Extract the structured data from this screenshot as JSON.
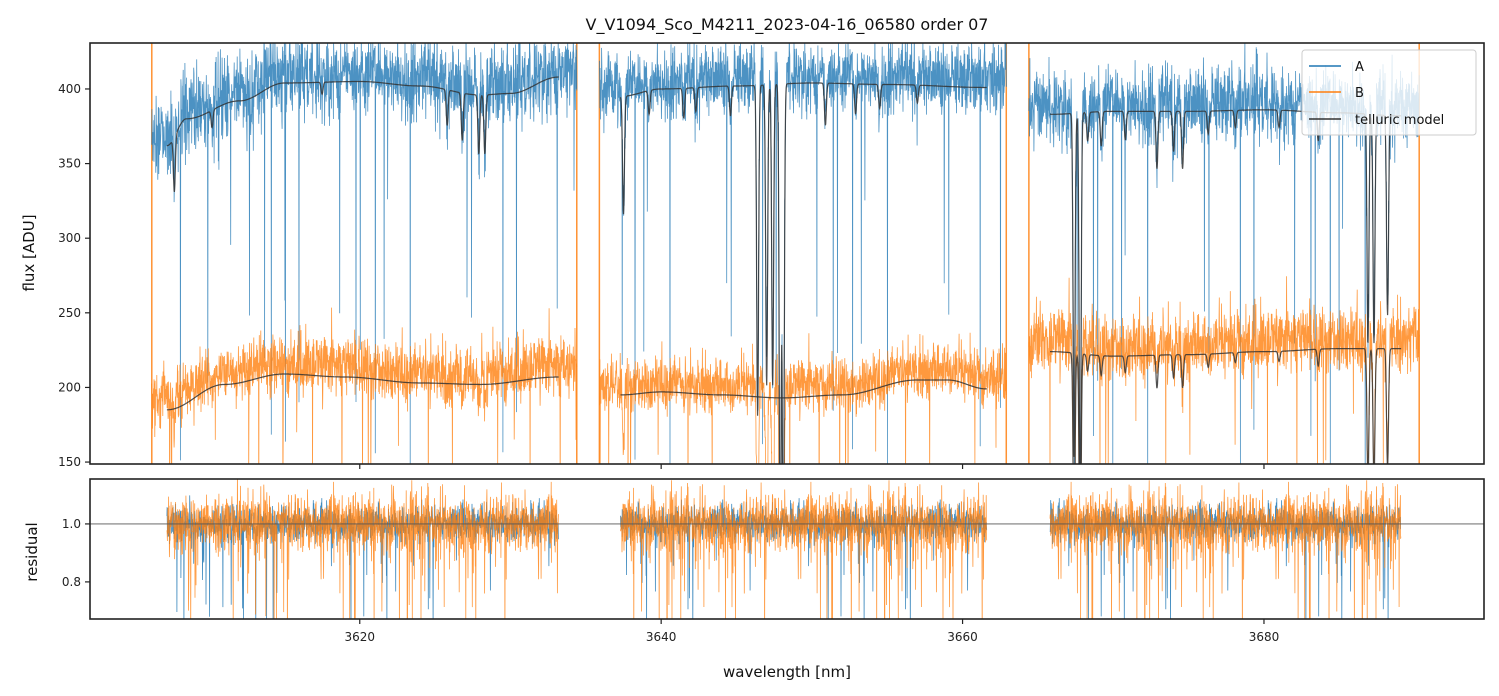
{
  "chart_data": {
    "type": "line",
    "title": "V_V1094_Sco_M4211_2023-04-16_06580  order 07",
    "xlabel": "wavelength [nm]",
    "colors": {
      "A": "#1f77b4",
      "B": "#ff7f0e",
      "telluric": "#333333",
      "residual_ref": "#555555"
    },
    "panels": [
      {
        "name": "flux",
        "ylabel": "flux [ADU]",
        "xlim": [
          3602.1,
          3694.6
        ],
        "ylim": [
          148.7,
          430.8
        ],
        "yticks": [
          150,
          200,
          250,
          300,
          350,
          400
        ],
        "ytick_labels": [
          "150",
          "200",
          "250",
          "300",
          "350",
          "400"
        ],
        "xticks": [
          3620,
          3640,
          3660,
          3680
        ]
      },
      {
        "name": "residual",
        "ylabel": "residual",
        "xlim": [
          3602.1,
          3694.6
        ],
        "ylim": [
          0.672,
          1.155
        ],
        "yticks": [
          0.8,
          1.0
        ],
        "ytick_labels": [
          "0.8",
          "1.0"
        ],
        "xticks": [
          3620,
          3640,
          3660,
          3680
        ],
        "xtick_labels": [
          "3620",
          "3640",
          "3660",
          "3680"
        ],
        "reference_line": 1.0
      }
    ],
    "segments": [
      {
        "x_range": [
          3606.2,
          3634.4
        ],
        "model_range": [
          3607.2,
          3633.2
        ],
        "A_continuum": [
          [
            3607.2,
            362
          ],
          [
            3608.5,
            380
          ],
          [
            3612,
            392
          ],
          [
            3615,
            404
          ],
          [
            3620,
            405
          ],
          [
            3624,
            402
          ],
          [
            3628,
            396
          ],
          [
            3630,
            397
          ],
          [
            3633.2,
            408
          ]
        ],
        "B_continuum": [
          [
            3607.2,
            185
          ],
          [
            3611,
            202
          ],
          [
            3615,
            209
          ],
          [
            3619,
            207
          ],
          [
            3624,
            203
          ],
          [
            3628,
            202
          ],
          [
            3633.2,
            207
          ]
        ],
        "A_noise": 14,
        "B_noise": 10,
        "model_lines": [
          [
            3607.7,
            0.1
          ],
          [
            3610.2,
            0.03
          ],
          [
            3617.5,
            0.02
          ],
          [
            3625.8,
            0.06
          ],
          [
            3626.8,
            0.08
          ],
          [
            3627.9,
            0.1
          ],
          [
            3628.3,
            0.1
          ]
        ]
      },
      {
        "x_range": [
          3635.9,
          3662.9
        ],
        "model_range": [
          3637.3,
          3661.6
        ],
        "A_continuum": [
          [
            3637.3,
            395
          ],
          [
            3640,
            400
          ],
          [
            3645,
            402
          ],
          [
            3650,
            404
          ],
          [
            3655,
            403
          ],
          [
            3661.6,
            401
          ]
        ],
        "B_continuum": [
          [
            3637.3,
            195
          ],
          [
            3640,
            197
          ],
          [
            3644,
            195
          ],
          [
            3648,
            193
          ],
          [
            3652,
            195
          ],
          [
            3657,
            205
          ],
          [
            3659,
            205
          ],
          [
            3661.6,
            199
          ]
        ],
        "A_noise": 12,
        "B_noise": 9,
        "model_lines": [
          [
            3637.5,
            0.2
          ],
          [
            3639.2,
            0.04
          ],
          [
            3641.5,
            0.05
          ],
          [
            3642.3,
            0.04
          ],
          [
            3644.6,
            0.05
          ],
          [
            3646.4,
            0.55
          ],
          [
            3647.0,
            0.5
          ],
          [
            3647.4,
            0.5
          ],
          [
            3647.9,
            0.85
          ],
          [
            3648.1,
            0.85
          ],
          [
            3650.9,
            0.07
          ],
          [
            3652.9,
            0.05
          ],
          [
            3654.5,
            0.04
          ],
          [
            3657.0,
            0.03
          ]
        ]
      },
      {
        "x_range": [
          3664.4,
          3690.3
        ],
        "model_range": [
          3665.8,
          3689.1
        ],
        "A_continuum": [
          [
            3665.8,
            383
          ],
          [
            3670,
            385
          ],
          [
            3675,
            385
          ],
          [
            3680,
            386
          ],
          [
            3685,
            384
          ],
          [
            3689.1,
            382
          ]
        ],
        "B_continuum": [
          [
            3665.8,
            224
          ],
          [
            3670,
            221
          ],
          [
            3675,
            222
          ],
          [
            3680,
            224
          ],
          [
            3685,
            226
          ],
          [
            3689.1,
            226
          ]
        ],
        "A_noise": 13,
        "B_noise": 11,
        "model_lines": [
          [
            3667.4,
            0.6
          ],
          [
            3667.8,
            0.7
          ],
          [
            3668.3,
            0.05
          ],
          [
            3669.2,
            0.06
          ],
          [
            3670.8,
            0.05
          ],
          [
            3672.9,
            0.1
          ],
          [
            3674.0,
            0.07
          ],
          [
            3674.6,
            0.1
          ],
          [
            3676.3,
            0.04
          ],
          [
            3678.1,
            0.03
          ],
          [
            3681.0,
            0.03
          ],
          [
            3683.6,
            0.05
          ],
          [
            3686.9,
            0.4
          ],
          [
            3687.3,
            0.4
          ],
          [
            3688.2,
            0.35
          ]
        ]
      }
    ],
    "legend": {
      "placement": "upper-right",
      "entries": [
        "A",
        "B",
        "telluric model"
      ]
    }
  }
}
